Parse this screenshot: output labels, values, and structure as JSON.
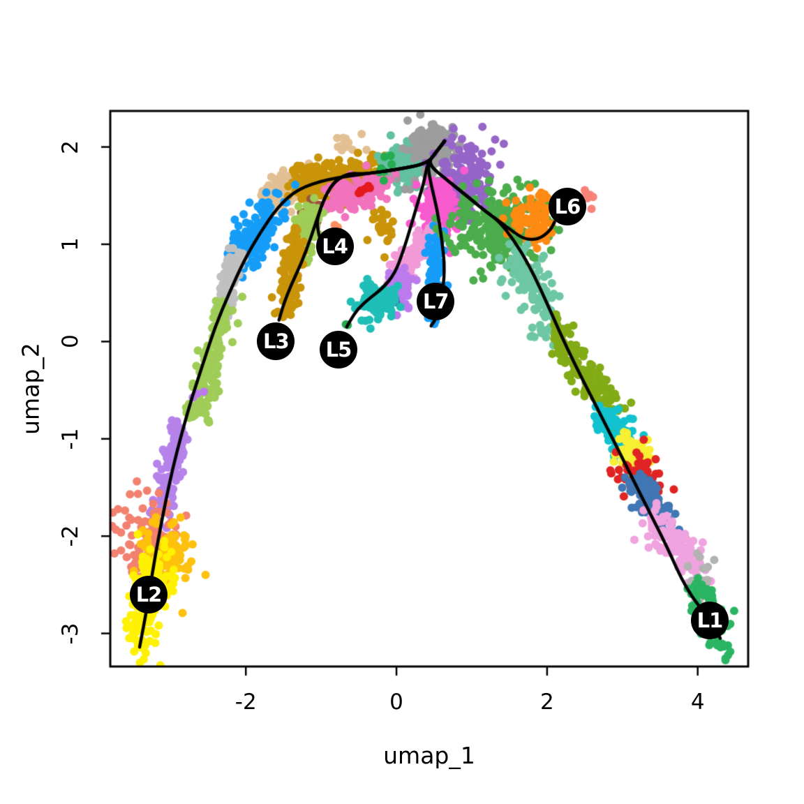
{
  "chart_data": {
    "type": "scatter",
    "title": "",
    "xlabel": "umap_1",
    "ylabel": "umap_2",
    "xlim": [
      -3.8,
      4.67
    ],
    "ylim": [
      -3.34,
      2.37
    ],
    "xticks": [
      -2,
      0,
      2,
      4
    ],
    "yticks": [
      2,
      1,
      0,
      -1,
      -2,
      -3
    ],
    "grid": false,
    "legend": "none",
    "axis_color": "#000000",
    "curve_color": "#000000",
    "label_circle_color": "#000000",
    "label_text_color": "#FFFFFF",
    "clusters": [
      {
        "name": "tan-band",
        "color": "#E3C094",
        "n": 115,
        "strand": [
          -1.75,
          1.4,
          -1.15,
          1.73,
          0.09
        ]
      },
      {
        "name": "tan-top-specks",
        "color": "#E3C094",
        "n": 14,
        "blob": [
          -0.66,
          2.02,
          0.12,
          0.06
        ]
      },
      {
        "name": "ochre-band",
        "color": "#C9940A",
        "n": 210,
        "strand": [
          -1.3,
          1.6,
          -0.22,
          1.76,
          0.1
        ]
      },
      {
        "name": "ochre-mid-patch",
        "color": "#C9940A",
        "n": 22,
        "blob": [
          -0.17,
          1.19,
          0.09,
          0.12
        ]
      },
      {
        "name": "light-steel-blue-patch",
        "color": "#92A7DB",
        "n": 20,
        "blob": [
          -0.07,
          1.84,
          0.06,
          0.05
        ]
      },
      {
        "name": "teal-green-top",
        "color": "#63C1A0",
        "n": 130,
        "blob": [
          0.16,
          1.83,
          0.18,
          0.11
        ]
      },
      {
        "name": "gray-top",
        "color": "#9D9D9D",
        "n": 150,
        "blob": [
          0.49,
          2.02,
          0.16,
          0.11
        ]
      },
      {
        "name": "gray-strays",
        "color": "#9D9D9D",
        "n": 12,
        "blob": [
          0.33,
          1.64,
          0.22,
          0.07
        ]
      },
      {
        "name": "purple-top",
        "color": "#9565C8",
        "n": 190,
        "blob": [
          0.9,
          1.65,
          0.17,
          0.22
        ]
      },
      {
        "name": "hot-pink-left",
        "color": "#F173BD",
        "n": 130,
        "strand": [
          -0.85,
          1.46,
          -0.15,
          1.63,
          0.08
        ]
      },
      {
        "name": "brown-patch",
        "color": "#9E5239",
        "n": 24,
        "blob": [
          -1.1,
          1.33,
          0.07,
          0.11
        ]
      },
      {
        "name": "yellow-green-l4",
        "color": "#9FCD58",
        "n": 80,
        "strand": [
          -1.26,
          0.88,
          -1.12,
          1.4,
          0.08
        ]
      },
      {
        "name": "red-specks",
        "color": "#E31A1C",
        "n": 6,
        "blob": [
          -0.42,
          1.57,
          0.04,
          0.05
        ]
      },
      {
        "name": "green-specks",
        "color": "#23AD4E",
        "n": 7,
        "blob": [
          -0.13,
          1.72,
          0.08,
          0.12
        ]
      },
      {
        "name": "coral-stray",
        "color": "#FC8D62",
        "n": 2,
        "blob": [
          -0.81,
          1.17,
          0.02,
          0.02
        ]
      },
      {
        "name": "magenta-center",
        "color": "#F75BCE",
        "n": 160,
        "blob": [
          0.56,
          1.3,
          0.14,
          0.17
        ]
      },
      {
        "name": "light-pink-band",
        "color": "#F29AD7",
        "n": 90,
        "strand": [
          0.02,
          0.66,
          0.48,
          1.16,
          0.09
        ]
      },
      {
        "name": "dodger-blue-l7",
        "color": "#159DF8",
        "n": 95,
        "strand": [
          0.55,
          1.15,
          0.5,
          0.14,
          0.06
        ]
      },
      {
        "name": "medium-orchid-patch",
        "color": "#BC7BED",
        "n": 55,
        "blob": [
          0.05,
          0.55,
          0.08,
          0.1
        ]
      },
      {
        "name": "steel-blue-dot",
        "color": "#3E74B2",
        "n": 2,
        "blob": [
          -0.01,
          0.44,
          0.02,
          0.02
        ]
      },
      {
        "name": "teal-l5",
        "color": "#1FBEB6",
        "n": 95,
        "blob": [
          -0.27,
          0.4,
          0.12,
          0.1
        ]
      },
      {
        "name": "green-dot-l5",
        "color": "#23AD4E",
        "n": 2,
        "blob": [
          -0.66,
          0.17,
          0.02,
          0.02
        ]
      },
      {
        "name": "ochre-l3-strip",
        "color": "#C9940A",
        "n": 105,
        "strand": [
          -1.48,
          0.28,
          -1.32,
          1.1,
          0.08
        ]
      },
      {
        "name": "dodger-blue-left",
        "color": "#159DF8",
        "n": 140,
        "strand": [
          -2.1,
          0.78,
          -1.66,
          1.4,
          0.11
        ]
      },
      {
        "name": "blue-stray",
        "color": "#159DF8",
        "n": 2,
        "blob": [
          -1.51,
          1.34,
          0.02,
          0.02
        ]
      },
      {
        "name": "gray-strip-left",
        "color": "#C0C0C0",
        "n": 90,
        "strand": [
          -2.36,
          0.27,
          -2.1,
          0.94,
          0.07
        ]
      },
      {
        "name": "yellow-green-left",
        "color": "#9FCD58",
        "n": 150,
        "strand": [
          -2.66,
          -0.81,
          -2.28,
          0.37,
          0.08
        ]
      },
      {
        "name": "violet-dot-left",
        "color": "#BC7BED",
        "n": 3,
        "blob": [
          -2.63,
          -0.56,
          0.03,
          0.03
        ]
      },
      {
        "name": "medium-purple-strip",
        "color": "#B583E9",
        "n": 130,
        "strand": [
          -3.14,
          -1.78,
          -2.88,
          -0.84,
          0.08
        ]
      },
      {
        "name": "salmon-left",
        "color": "#F28170",
        "n": 125,
        "blob": [
          -3.27,
          -2.07,
          0.2,
          0.22
        ]
      },
      {
        "name": "gold-left",
        "color": "#FEC10D",
        "n": 110,
        "blob": [
          -3.07,
          -2.21,
          0.19,
          0.19
        ]
      },
      {
        "name": "yellow-l2",
        "color": "#FEF102",
        "n": 145,
        "strand": [
          -3.4,
          -3.1,
          -3.16,
          -2.28,
          0.13
        ]
      },
      {
        "name": "green-right",
        "color": "#4BAD4B",
        "n": 230,
        "blob": [
          1.34,
          1.16,
          0.3,
          0.22
        ]
      },
      {
        "name": "orange-l6",
        "color": "#FD8A12",
        "n": 80,
        "blob": [
          1.83,
          1.29,
          0.16,
          0.14
        ]
      },
      {
        "name": "salmon-l6-specks",
        "color": "#F88379",
        "n": 7,
        "blob": [
          2.56,
          1.47,
          0.05,
          0.05
        ]
      },
      {
        "name": "teal-green-right",
        "color": "#6EC7A4",
        "n": 125,
        "strand": [
          1.55,
          0.88,
          2.1,
          0.18,
          0.12
        ]
      },
      {
        "name": "olive-strand",
        "color": "#82AB16",
        "n": 130,
        "strand": [
          2.08,
          0.15,
          2.97,
          -0.82,
          0.09
        ]
      },
      {
        "name": "dark-turquoise-right",
        "color": "#12C2CE",
        "n": 80,
        "strand": [
          2.72,
          -0.75,
          3.08,
          -1.05,
          0.09
        ]
      },
      {
        "name": "yellow-right",
        "color": "#F8EE33",
        "n": 60,
        "blob": [
          3.15,
          -1.15,
          0.14,
          0.1
        ]
      },
      {
        "name": "red-right",
        "color": "#E02423",
        "n": 50,
        "blob": [
          3.22,
          -1.36,
          0.16,
          0.12
        ]
      },
      {
        "name": "steel-blue-right",
        "color": "#4077B4",
        "n": 100,
        "strand": [
          3.19,
          -1.46,
          3.58,
          -1.83,
          0.09
        ]
      },
      {
        "name": "orchid-pink-right",
        "color": "#EFA3DF",
        "n": 130,
        "strand": [
          3.4,
          -1.83,
          4.06,
          -2.42,
          0.1
        ]
      },
      {
        "name": "gray-right",
        "color": "#B3B3B3",
        "n": 30,
        "blob": [
          4.06,
          -2.48,
          0.1,
          0.12
        ]
      },
      {
        "name": "green-l1",
        "color": "#2BB562",
        "n": 85,
        "strand": [
          4.02,
          -2.56,
          4.38,
          -3.1,
          0.1
        ]
      }
    ],
    "curves": [
      {
        "name": "lineage-1",
        "points": [
          [
            0.64,
            2.06
          ],
          [
            0.52,
            1.94
          ],
          [
            0.41,
            1.83
          ],
          [
            0.67,
            1.66
          ],
          [
            0.93,
            1.5
          ],
          [
            1.18,
            1.34
          ],
          [
            1.36,
            1.24
          ],
          [
            1.56,
            1.04
          ],
          [
            1.75,
            0.8
          ],
          [
            1.92,
            0.53
          ],
          [
            2.08,
            0.25
          ],
          [
            2.26,
            -0.06
          ],
          [
            2.47,
            -0.39
          ],
          [
            2.69,
            -0.72
          ],
          [
            2.91,
            -1.06
          ],
          [
            3.13,
            -1.4
          ],
          [
            3.35,
            -1.74
          ],
          [
            3.58,
            -2.09
          ],
          [
            3.85,
            -2.55
          ],
          [
            4.16,
            -2.86
          ],
          [
            4.3,
            -3.05
          ]
        ]
      },
      {
        "name": "lineage-2",
        "points": [
          [
            0.64,
            2.06
          ],
          [
            0.52,
            1.94
          ],
          [
            0.41,
            1.83
          ],
          [
            0.02,
            1.77
          ],
          [
            -0.44,
            1.72
          ],
          [
            -0.91,
            1.67
          ],
          [
            -1.31,
            1.57
          ],
          [
            -1.57,
            1.39
          ],
          [
            -1.81,
            1.12
          ],
          [
            -2.02,
            0.84
          ],
          [
            -2.22,
            0.5
          ],
          [
            -2.41,
            0.15
          ],
          [
            -2.56,
            -0.21
          ],
          [
            -2.71,
            -0.56
          ],
          [
            -2.85,
            -0.94
          ],
          [
            -2.97,
            -1.3
          ],
          [
            -3.07,
            -1.66
          ],
          [
            -3.16,
            -2.02
          ],
          [
            -3.24,
            -2.37
          ],
          [
            -3.31,
            -2.73
          ],
          [
            -3.41,
            -3.14
          ]
        ]
      },
      {
        "name": "lineage-3",
        "points": [
          [
            0.64,
            2.06
          ],
          [
            0.52,
            1.94
          ],
          [
            0.41,
            1.83
          ],
          [
            0.02,
            1.77
          ],
          [
            -0.44,
            1.72
          ],
          [
            -0.62,
            1.73
          ],
          [
            -0.81,
            1.66
          ],
          [
            -0.95,
            1.49
          ],
          [
            -1.05,
            1.27
          ],
          [
            -1.14,
            1.06
          ],
          [
            -1.26,
            0.81
          ],
          [
            -1.4,
            0.58
          ],
          [
            -1.5,
            0.38
          ],
          [
            -1.56,
            0.22
          ]
        ]
      },
      {
        "name": "lineage-4",
        "points": [
          [
            0.64,
            2.06
          ],
          [
            0.52,
            1.94
          ],
          [
            0.41,
            1.83
          ],
          [
            0.02,
            1.77
          ],
          [
            -0.44,
            1.72
          ],
          [
            -0.62,
            1.73
          ],
          [
            -0.81,
            1.66
          ],
          [
            -0.95,
            1.49
          ],
          [
            -1.05,
            1.27
          ],
          [
            -1.05,
            1.17
          ],
          [
            -1.02,
            1.07
          ],
          [
            -0.99,
            1.0
          ]
        ]
      },
      {
        "name": "lineage-5",
        "points": [
          [
            0.64,
            2.06
          ],
          [
            0.52,
            1.94
          ],
          [
            0.41,
            1.83
          ],
          [
            0.37,
            1.65
          ],
          [
            0.28,
            1.42
          ],
          [
            0.19,
            1.18
          ],
          [
            0.09,
            0.93
          ],
          [
            -0.02,
            0.7
          ],
          [
            -0.18,
            0.55
          ],
          [
            -0.35,
            0.45
          ],
          [
            -0.51,
            0.34
          ],
          [
            -0.61,
            0.22
          ],
          [
            -0.66,
            0.15
          ]
        ]
      },
      {
        "name": "lineage-6",
        "points": [
          [
            0.64,
            2.06
          ],
          [
            0.52,
            1.94
          ],
          [
            0.41,
            1.83
          ],
          [
            0.67,
            1.66
          ],
          [
            0.93,
            1.5
          ],
          [
            1.18,
            1.34
          ],
          [
            1.36,
            1.24
          ],
          [
            1.53,
            1.14
          ],
          [
            1.7,
            1.05
          ],
          [
            1.89,
            1.05
          ],
          [
            2.04,
            1.14
          ],
          [
            2.1,
            1.23
          ]
        ]
      },
      {
        "name": "lineage-7",
        "points": [
          [
            0.64,
            2.06
          ],
          [
            0.52,
            1.94
          ],
          [
            0.41,
            1.83
          ],
          [
            0.46,
            1.61
          ],
          [
            0.54,
            1.36
          ],
          [
            0.6,
            1.07
          ],
          [
            0.64,
            0.78
          ],
          [
            0.62,
            0.53
          ],
          [
            0.56,
            0.28
          ],
          [
            0.46,
            0.16
          ]
        ]
      }
    ],
    "labels": [
      {
        "text": "L1",
        "x": 4.16,
        "y": -2.87
      },
      {
        "text": "L2",
        "x": -3.29,
        "y": -2.6
      },
      {
        "text": "L3",
        "x": -1.6,
        "y": 0.0
      },
      {
        "text": "L4",
        "x": -0.82,
        "y": 0.98
      },
      {
        "text": "L5",
        "x": -0.77,
        "y": -0.08
      },
      {
        "text": "L6",
        "x": 2.27,
        "y": 1.39
      },
      {
        "text": "L7",
        "x": 0.52,
        "y": 0.41
      }
    ]
  }
}
